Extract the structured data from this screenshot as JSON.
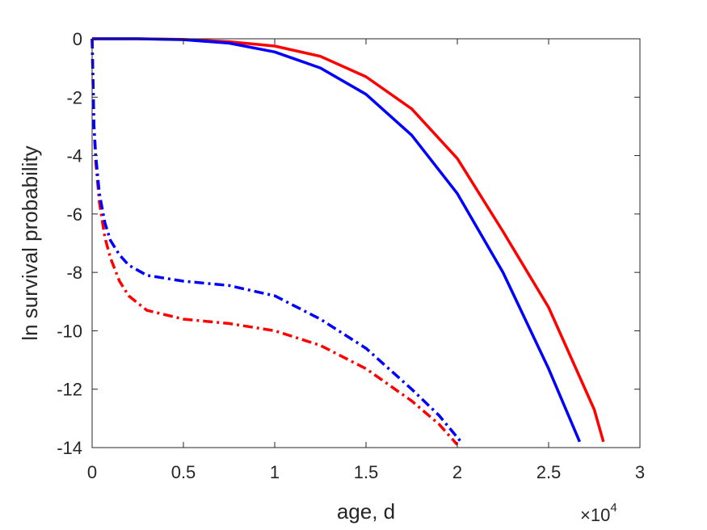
{
  "chart_data": {
    "type": "line",
    "title": "",
    "xlabel": "age, d",
    "ylabel": "ln survival probability",
    "x_exponent_label": "×10",
    "x_exponent_power": "4",
    "xlim": [
      0,
      3
    ],
    "ylim": [
      -14,
      0
    ],
    "x_ticks": [
      "0",
      "0.5",
      "1",
      "1.5",
      "2",
      "2.5",
      "3"
    ],
    "y_ticks": [
      "0",
      "-2",
      "-4",
      "-6",
      "-8",
      "-10",
      "-12",
      "-14"
    ],
    "grid": false,
    "series": [
      {
        "color": "#ff0000",
        "style": "solid",
        "x": [
          0,
          0.25,
          0.5,
          0.75,
          1.0,
          1.25,
          1.5,
          1.75,
          2.0,
          2.25,
          2.5,
          2.75,
          2.8
        ],
        "y": [
          0,
          0,
          -0.02,
          -0.1,
          -0.25,
          -0.6,
          -1.3,
          -2.4,
          -4.1,
          -6.6,
          -9.2,
          -12.7,
          -13.8
        ]
      },
      {
        "color": "#0000ff",
        "style": "solid",
        "x": [
          0,
          0.25,
          0.5,
          0.75,
          1.0,
          1.25,
          1.5,
          1.75,
          2.0,
          2.25,
          2.5,
          2.67
        ],
        "y": [
          0,
          0,
          -0.03,
          -0.15,
          -0.45,
          -1.0,
          -1.9,
          -3.3,
          -5.3,
          -8.0,
          -11.3,
          -13.8
        ]
      },
      {
        "color": "#ff0000",
        "style": "dashdot",
        "x": [
          0,
          0.01,
          0.02,
          0.04,
          0.07,
          0.1,
          0.15,
          0.2,
          0.3,
          0.5,
          0.75,
          1.0,
          1.25,
          1.5,
          1.75,
          1.9,
          2.0
        ],
        "y": [
          0,
          -3.0,
          -4.2,
          -5.6,
          -6.8,
          -7.5,
          -8.3,
          -8.8,
          -9.3,
          -9.6,
          -9.75,
          -10.0,
          -10.5,
          -11.3,
          -12.4,
          -13.2,
          -13.9
        ]
      },
      {
        "color": "#0000ff",
        "style": "dashdot",
        "x": [
          0,
          0.01,
          0.02,
          0.04,
          0.07,
          0.1,
          0.15,
          0.2,
          0.3,
          0.5,
          0.75,
          1.0,
          1.25,
          1.5,
          1.75,
          1.9,
          2.02
        ],
        "y": [
          0,
          -3.0,
          -4.0,
          -5.3,
          -6.3,
          -6.9,
          -7.4,
          -7.75,
          -8.1,
          -8.3,
          -8.45,
          -8.8,
          -9.6,
          -10.6,
          -12.0,
          -12.9,
          -13.8
        ]
      }
    ]
  }
}
